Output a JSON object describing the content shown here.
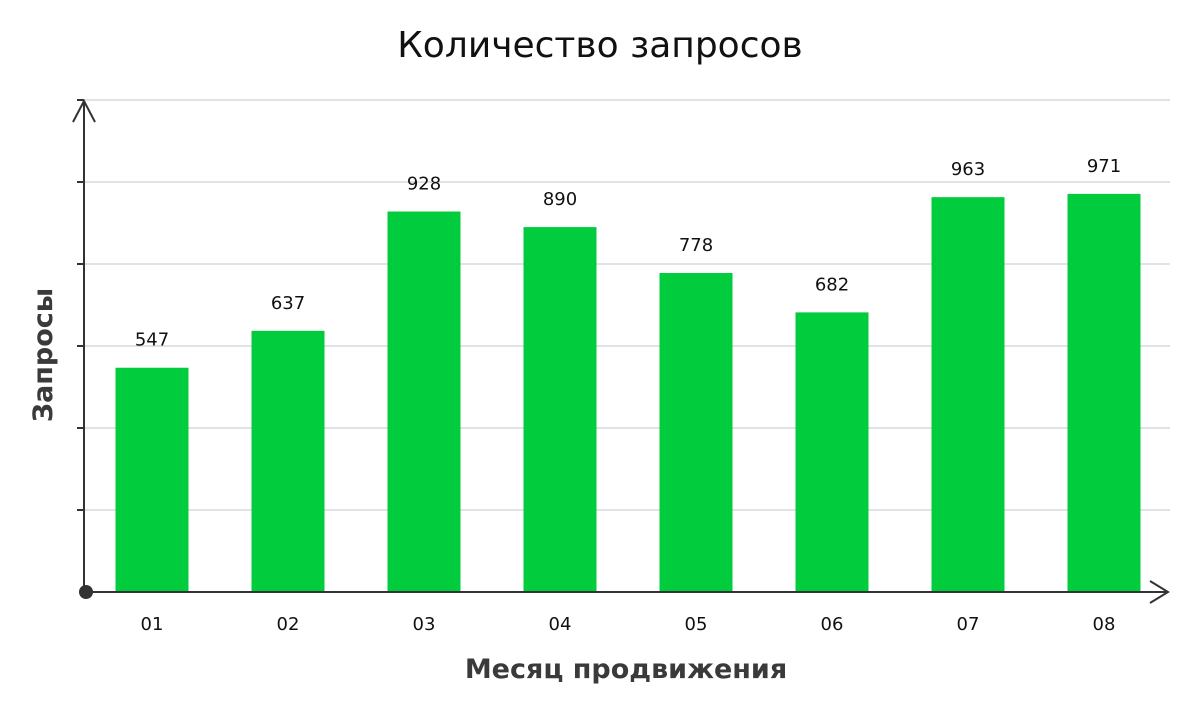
{
  "chart_data": {
    "type": "bar",
    "title": "Количество запросов",
    "xlabel": "Месяц продвижения",
    "ylabel": "Запросы",
    "categories": [
      "01",
      "02",
      "03",
      "04",
      "05",
      "06",
      "07",
      "08"
    ],
    "values": [
      547,
      637,
      928,
      890,
      778,
      682,
      963,
      971
    ],
    "ylim": [
      0,
      1200
    ],
    "y_tick_labels_shown": false,
    "grid": true,
    "legend": "none",
    "colors": {
      "bar": "#00cc3d",
      "grid": "#dfe3e8",
      "axis": "#333333"
    }
  }
}
